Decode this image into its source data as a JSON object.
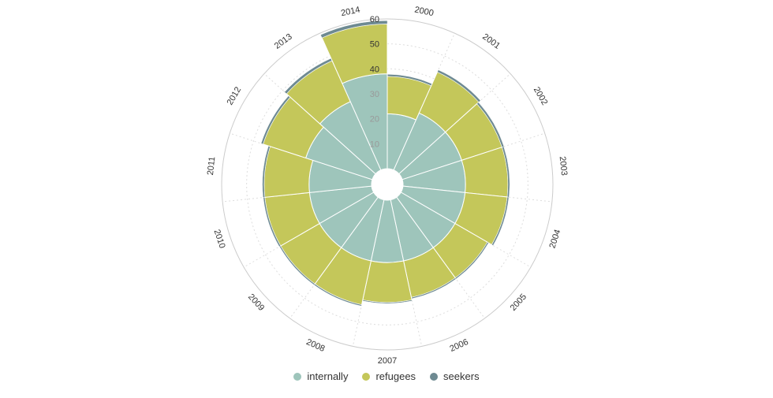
{
  "chart_data": {
    "type": "polar-stacked-bar",
    "categories": [
      "2000",
      "2001",
      "2002",
      "2003",
      "2004",
      "2005",
      "2006",
      "2007",
      "2008",
      "2009",
      "2010",
      "2011",
      "2012",
      "2013",
      "2014"
    ],
    "series": [
      {
        "name": "internally",
        "color": "#9ec5bb",
        "values": [
          22,
          25,
          25,
          25,
          25,
          25,
          25,
          25,
          25,
          25,
          25,
          25,
          28,
          30,
          38
        ]
      },
      {
        "name": "refugees",
        "color": "#c4c75a",
        "values": [
          15,
          18,
          17,
          17,
          17,
          15,
          15,
          16,
          18,
          18,
          18,
          18,
          18,
          18,
          20
        ]
      },
      {
        "name": "seekers",
        "color": "#6e8a92",
        "values": [
          0.8,
          0.9,
          0.8,
          0.7,
          0.6,
          0.5,
          0.5,
          0.4,
          0.5,
          0.5,
          0.6,
          0.7,
          0.8,
          1.0,
          1.3
        ]
      }
    ],
    "y_ticks": [
      "10",
      "20",
      "30",
      "40",
      "50",
      "60"
    ],
    "ylim": [
      0,
      60
    ],
    "stacked": true,
    "grid": true,
    "legend_position": "bottom-center"
  }
}
